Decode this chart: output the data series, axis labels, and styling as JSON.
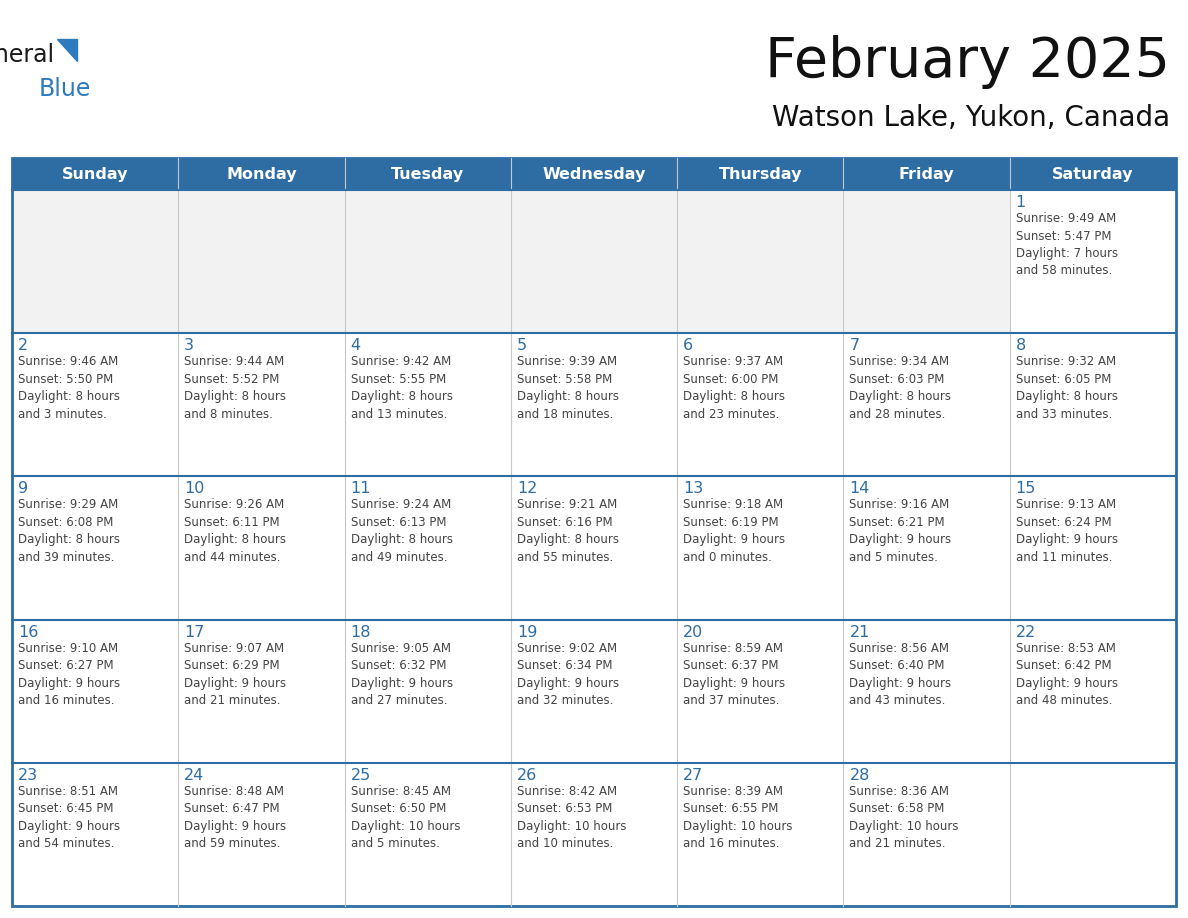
{
  "title": "February 2025",
  "subtitle": "Watson Lake, Yukon, Canada",
  "header_bg": "#2e6da4",
  "header_text": "#ffffff",
  "cell_bg_white": "#ffffff",
  "cell_bg_gray": "#f2f2f2",
  "border_color": "#2e6da4",
  "line_color": "#c8c8c8",
  "day_number_color": "#2e6da4",
  "text_color": "#444444",
  "logo_black": "#1a1a1a",
  "logo_blue": "#2e7abf",
  "days_of_week": [
    "Sunday",
    "Monday",
    "Tuesday",
    "Wednesday",
    "Thursday",
    "Friday",
    "Saturday"
  ],
  "weeks": [
    [
      {
        "day": null,
        "info": null
      },
      {
        "day": null,
        "info": null
      },
      {
        "day": null,
        "info": null
      },
      {
        "day": null,
        "info": null
      },
      {
        "day": null,
        "info": null
      },
      {
        "day": null,
        "info": null
      },
      {
        "day": 1,
        "info": "Sunrise: 9:49 AM\nSunset: 5:47 PM\nDaylight: 7 hours\nand 58 minutes."
      }
    ],
    [
      {
        "day": 2,
        "info": "Sunrise: 9:46 AM\nSunset: 5:50 PM\nDaylight: 8 hours\nand 3 minutes."
      },
      {
        "day": 3,
        "info": "Sunrise: 9:44 AM\nSunset: 5:52 PM\nDaylight: 8 hours\nand 8 minutes."
      },
      {
        "day": 4,
        "info": "Sunrise: 9:42 AM\nSunset: 5:55 PM\nDaylight: 8 hours\nand 13 minutes."
      },
      {
        "day": 5,
        "info": "Sunrise: 9:39 AM\nSunset: 5:58 PM\nDaylight: 8 hours\nand 18 minutes."
      },
      {
        "day": 6,
        "info": "Sunrise: 9:37 AM\nSunset: 6:00 PM\nDaylight: 8 hours\nand 23 minutes."
      },
      {
        "day": 7,
        "info": "Sunrise: 9:34 AM\nSunset: 6:03 PM\nDaylight: 8 hours\nand 28 minutes."
      },
      {
        "day": 8,
        "info": "Sunrise: 9:32 AM\nSunset: 6:05 PM\nDaylight: 8 hours\nand 33 minutes."
      }
    ],
    [
      {
        "day": 9,
        "info": "Sunrise: 9:29 AM\nSunset: 6:08 PM\nDaylight: 8 hours\nand 39 minutes."
      },
      {
        "day": 10,
        "info": "Sunrise: 9:26 AM\nSunset: 6:11 PM\nDaylight: 8 hours\nand 44 minutes."
      },
      {
        "day": 11,
        "info": "Sunrise: 9:24 AM\nSunset: 6:13 PM\nDaylight: 8 hours\nand 49 minutes."
      },
      {
        "day": 12,
        "info": "Sunrise: 9:21 AM\nSunset: 6:16 PM\nDaylight: 8 hours\nand 55 minutes."
      },
      {
        "day": 13,
        "info": "Sunrise: 9:18 AM\nSunset: 6:19 PM\nDaylight: 9 hours\nand 0 minutes."
      },
      {
        "day": 14,
        "info": "Sunrise: 9:16 AM\nSunset: 6:21 PM\nDaylight: 9 hours\nand 5 minutes."
      },
      {
        "day": 15,
        "info": "Sunrise: 9:13 AM\nSunset: 6:24 PM\nDaylight: 9 hours\nand 11 minutes."
      }
    ],
    [
      {
        "day": 16,
        "info": "Sunrise: 9:10 AM\nSunset: 6:27 PM\nDaylight: 9 hours\nand 16 minutes."
      },
      {
        "day": 17,
        "info": "Sunrise: 9:07 AM\nSunset: 6:29 PM\nDaylight: 9 hours\nand 21 minutes."
      },
      {
        "day": 18,
        "info": "Sunrise: 9:05 AM\nSunset: 6:32 PM\nDaylight: 9 hours\nand 27 minutes."
      },
      {
        "day": 19,
        "info": "Sunrise: 9:02 AM\nSunset: 6:34 PM\nDaylight: 9 hours\nand 32 minutes."
      },
      {
        "day": 20,
        "info": "Sunrise: 8:59 AM\nSunset: 6:37 PM\nDaylight: 9 hours\nand 37 minutes."
      },
      {
        "day": 21,
        "info": "Sunrise: 8:56 AM\nSunset: 6:40 PM\nDaylight: 9 hours\nand 43 minutes."
      },
      {
        "day": 22,
        "info": "Sunrise: 8:53 AM\nSunset: 6:42 PM\nDaylight: 9 hours\nand 48 minutes."
      }
    ],
    [
      {
        "day": 23,
        "info": "Sunrise: 8:51 AM\nSunset: 6:45 PM\nDaylight: 9 hours\nand 54 minutes."
      },
      {
        "day": 24,
        "info": "Sunrise: 8:48 AM\nSunset: 6:47 PM\nDaylight: 9 hours\nand 59 minutes."
      },
      {
        "day": 25,
        "info": "Sunrise: 8:45 AM\nSunset: 6:50 PM\nDaylight: 10 hours\nand 5 minutes."
      },
      {
        "day": 26,
        "info": "Sunrise: 8:42 AM\nSunset: 6:53 PM\nDaylight: 10 hours\nand 10 minutes."
      },
      {
        "day": 27,
        "info": "Sunrise: 8:39 AM\nSunset: 6:55 PM\nDaylight: 10 hours\nand 16 minutes."
      },
      {
        "day": 28,
        "info": "Sunrise: 8:36 AM\nSunset: 6:58 PM\nDaylight: 10 hours\nand 21 minutes."
      },
      {
        "day": null,
        "info": null
      }
    ]
  ]
}
